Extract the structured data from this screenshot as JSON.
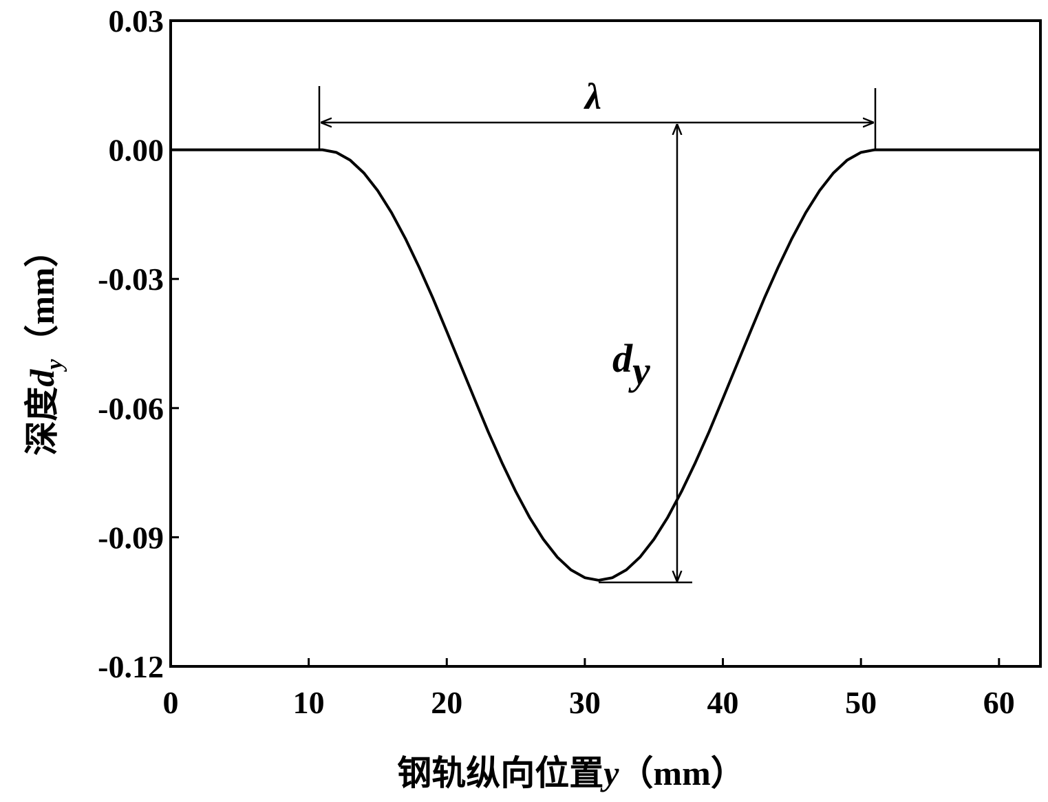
{
  "chart_data": {
    "type": "line",
    "xlabel": {
      "prefix": "钢轨纵向位置",
      "variable": "y",
      "unit": "（mm）"
    },
    "ylabel": {
      "prefix": "深度",
      "variable": "d",
      "subscript": "y",
      "unit": "（mm）"
    },
    "annotations": {
      "wavelength": "λ",
      "depth": {
        "main": "d",
        "subscript": "y"
      }
    },
    "x": [
      0,
      11,
      12,
      13,
      14,
      15,
      16,
      17,
      18,
      19,
      20,
      21,
      22,
      23,
      24,
      25,
      26,
      27,
      28,
      29,
      30,
      31,
      32,
      33,
      34,
      35,
      36,
      37,
      38,
      39,
      40,
      41,
      42,
      43,
      44,
      45,
      46,
      47,
      48,
      49,
      50,
      51,
      63
    ],
    "series": [
      {
        "color": "#000000",
        "values": [
          0,
          0,
          -0.0006,
          -0.0024,
          -0.0054,
          -0.0095,
          -0.0146,
          -0.0206,
          -0.0273,
          -0.0345,
          -0.0422,
          -0.05,
          -0.0578,
          -0.0655,
          -0.0727,
          -0.0794,
          -0.0854,
          -0.0905,
          -0.0946,
          -0.0976,
          -0.0994,
          -0.1,
          -0.0994,
          -0.0976,
          -0.0946,
          -0.0905,
          -0.0854,
          -0.0794,
          -0.0727,
          -0.0655,
          -0.0578,
          -0.05,
          -0.0422,
          -0.0345,
          -0.0273,
          -0.0206,
          -0.0146,
          -0.0095,
          -0.0054,
          -0.0024,
          -0.0006,
          0,
          0
        ]
      }
    ],
    "xlim": [
      0,
      63
    ],
    "xticks": [
      0,
      10,
      20,
      30,
      40,
      50,
      60
    ],
    "ylim": [
      -0.12,
      0.03
    ],
    "yticks": [
      0.03,
      {
        "value": 0,
        "label": "0.00"
      },
      -0.03,
      -0.06,
      -0.09,
      -0.12
    ]
  }
}
